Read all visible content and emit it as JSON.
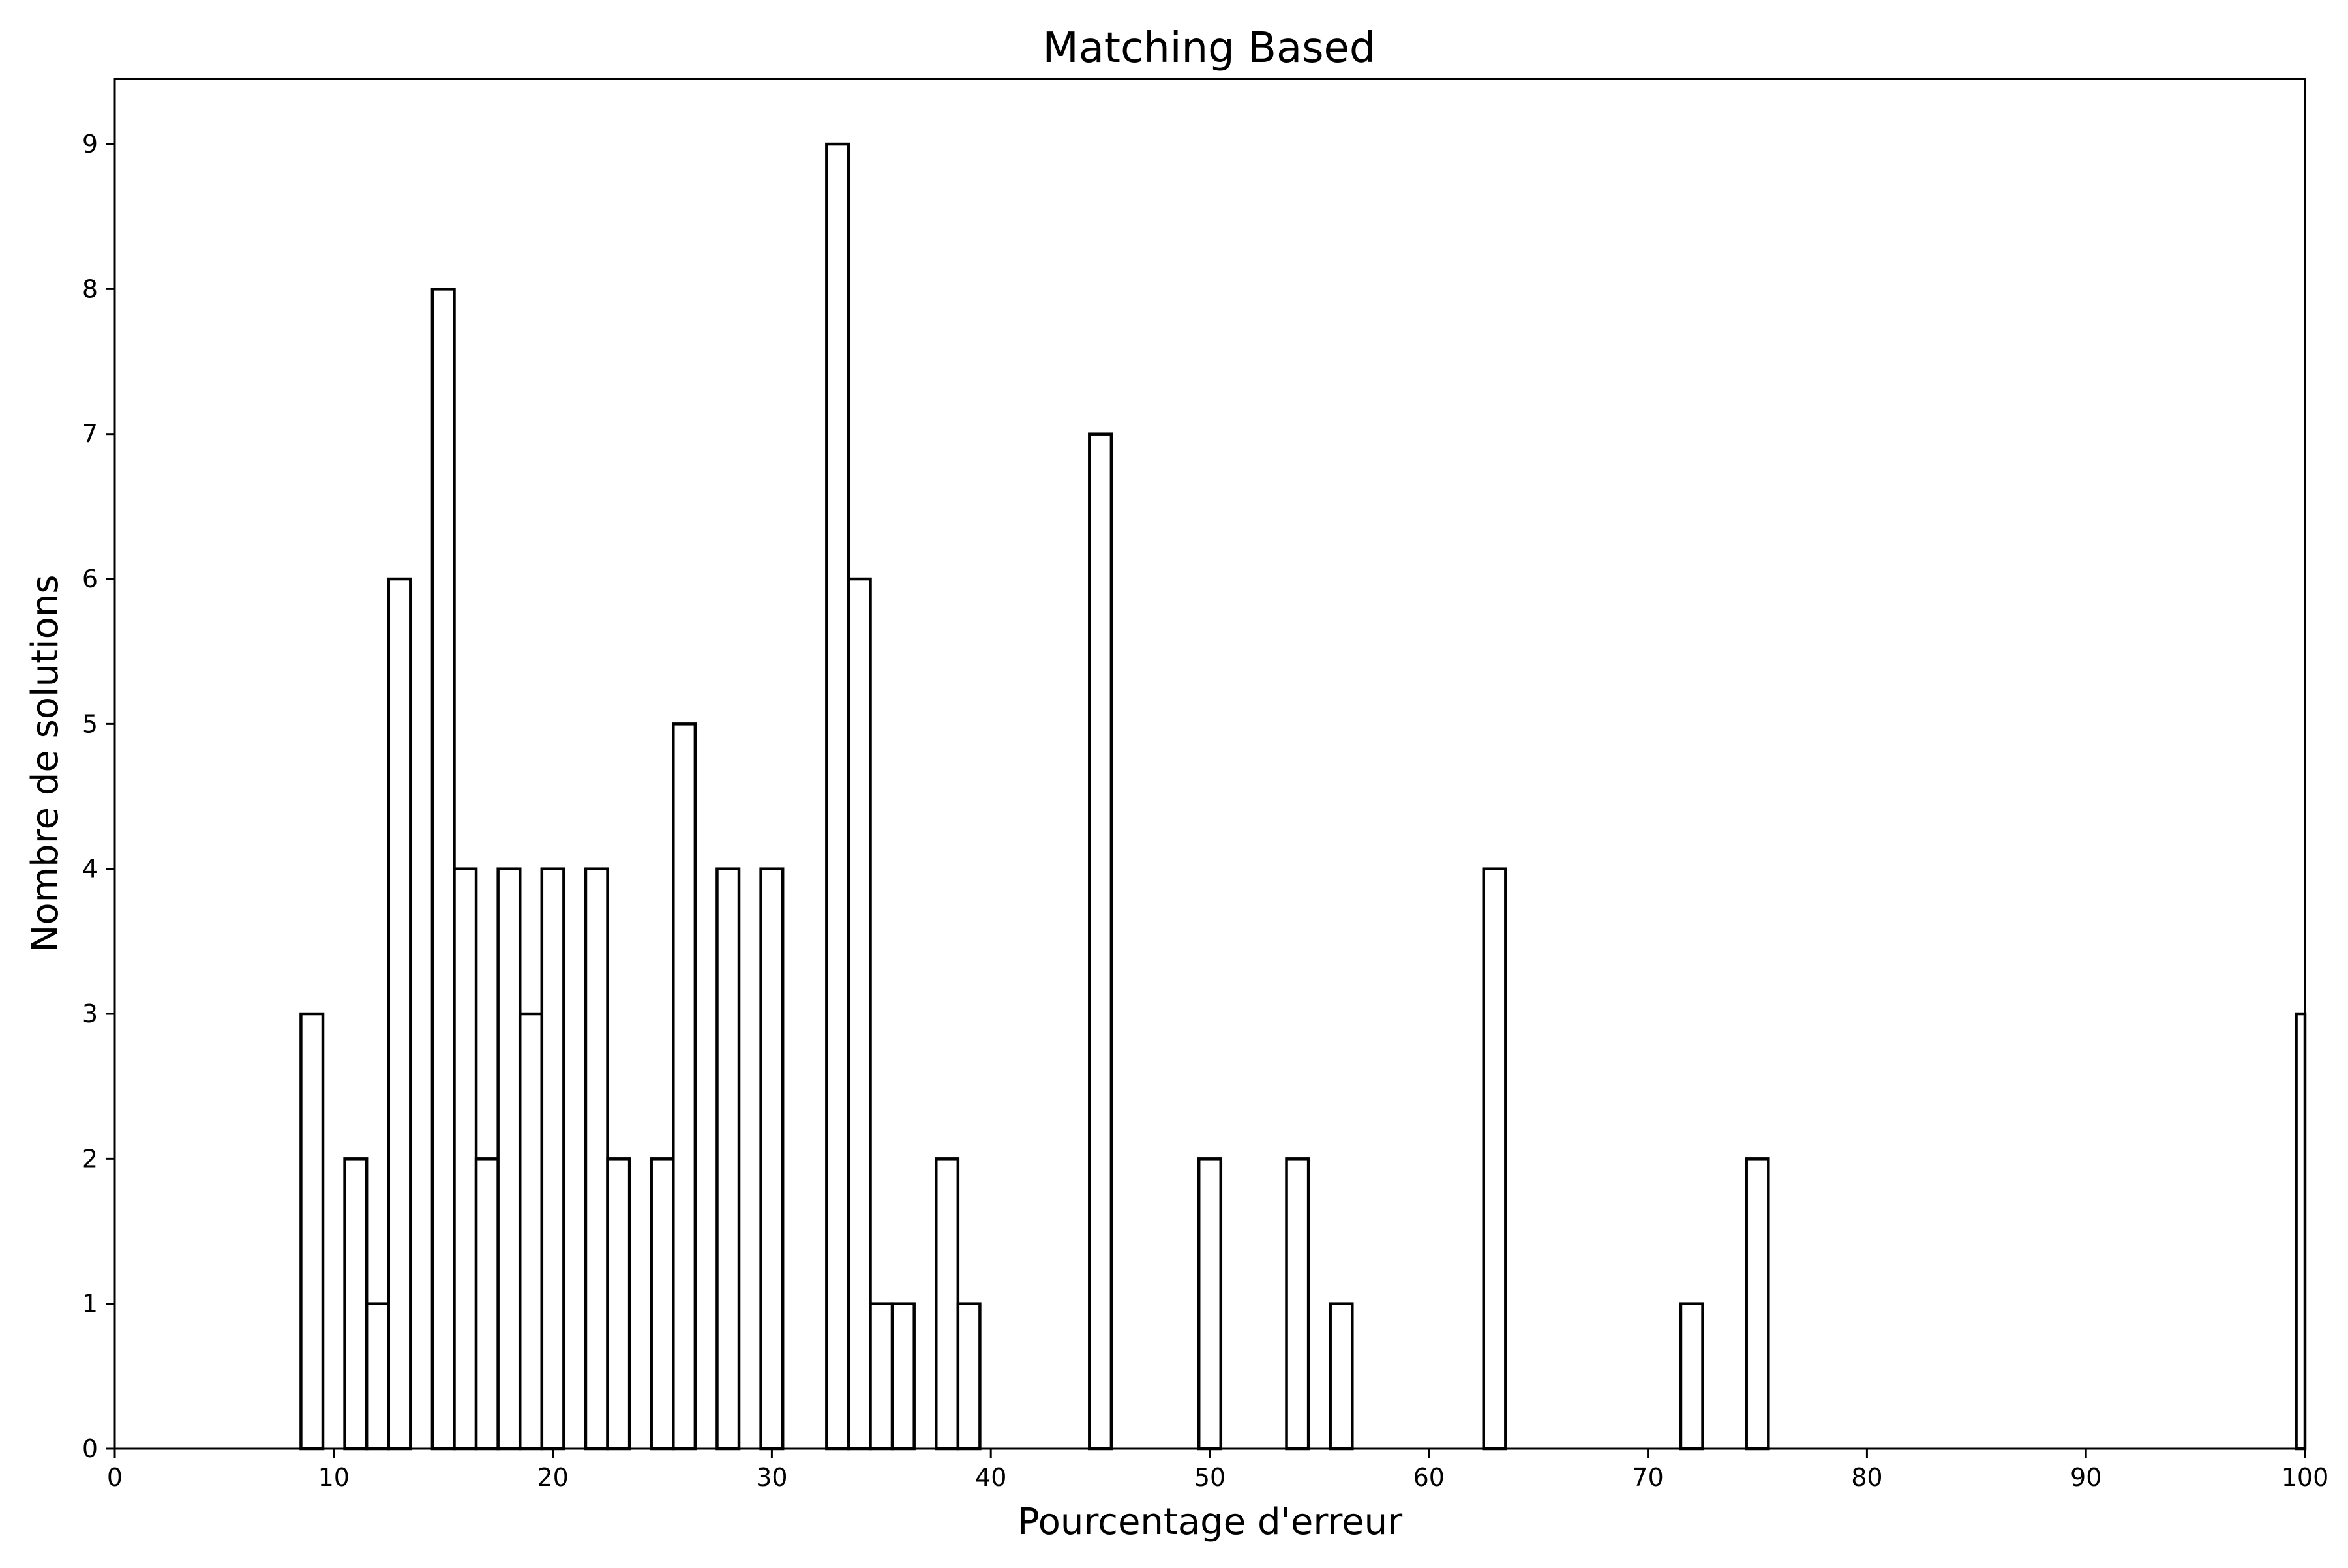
{
  "chart_data": {
    "type": "bar",
    "title": "Matching Based",
    "xlabel": "Pourcentage d'erreur",
    "ylabel": "Nombre de solutions",
    "xlim": [
      0,
      100
    ],
    "ylim": [
      0,
      9.45
    ],
    "xticks": [
      "0",
      "10",
      "20",
      "30",
      "40",
      "50",
      "60",
      "70",
      "80",
      "90",
      "100"
    ],
    "yticks": [
      "0",
      "1",
      "2",
      "3",
      "4",
      "5",
      "6",
      "7",
      "8",
      "9"
    ],
    "grid": false,
    "legend": "none",
    "bin_width": 1,
    "bins": [
      {
        "x": 8.5,
        "value": 3
      },
      {
        "x": 10.5,
        "value": 2
      },
      {
        "x": 11.5,
        "value": 1
      },
      {
        "x": 12.5,
        "value": 6
      },
      {
        "x": 14.5,
        "value": 8
      },
      {
        "x": 15.5,
        "value": 4
      },
      {
        "x": 16.5,
        "value": 2
      },
      {
        "x": 17.5,
        "value": 4
      },
      {
        "x": 18.5,
        "value": 3
      },
      {
        "x": 19.5,
        "value": 4
      },
      {
        "x": 21.5,
        "value": 4
      },
      {
        "x": 22.5,
        "value": 2
      },
      {
        "x": 24.5,
        "value": 2
      },
      {
        "x": 25.5,
        "value": 5
      },
      {
        "x": 27.5,
        "value": 4
      },
      {
        "x": 29.5,
        "value": 4
      },
      {
        "x": 32.5,
        "value": 9
      },
      {
        "x": 33.5,
        "value": 6
      },
      {
        "x": 34.5,
        "value": 1
      },
      {
        "x": 35.5,
        "value": 1
      },
      {
        "x": 37.5,
        "value": 2
      },
      {
        "x": 38.5,
        "value": 1
      },
      {
        "x": 44.5,
        "value": 7
      },
      {
        "x": 49.5,
        "value": 2
      },
      {
        "x": 53.5,
        "value": 2
      },
      {
        "x": 55.5,
        "value": 1
      },
      {
        "x": 62.5,
        "value": 4
      },
      {
        "x": 71.5,
        "value": 1
      },
      {
        "x": 74.5,
        "value": 2
      },
      {
        "x": 99.6,
        "value": 3
      }
    ]
  }
}
